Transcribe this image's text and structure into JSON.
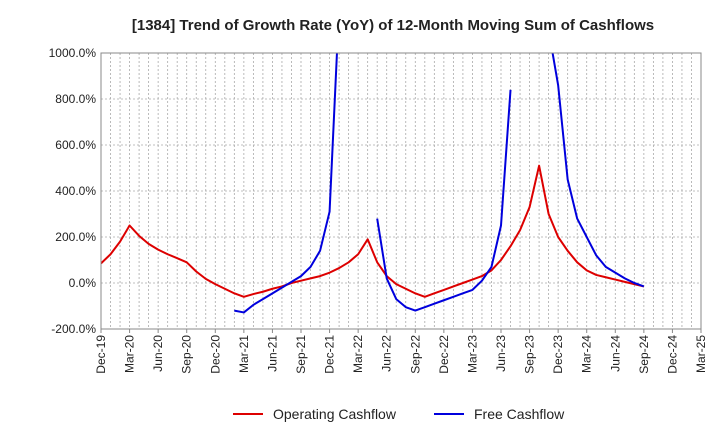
{
  "chart_data": {
    "type": "line",
    "title": "[1384]  Trend of Growth Rate (YoY) of 12-Month Moving Sum of Cashflows",
    "xlabel": "",
    "ylabel": "",
    "ylim": [
      -200,
      1000
    ],
    "yticks": [
      -200,
      0,
      200,
      400,
      600,
      800,
      1000
    ],
    "ytick_labels": [
      "-200.0%",
      "0.0%",
      "200.0%",
      "400.0%",
      "600.0%",
      "800.0%",
      "1000.0%"
    ],
    "x_start": "Dec-19",
    "x_end": "Mar-25",
    "xtick_labels": [
      "Dec-19",
      "Mar-20",
      "Jun-20",
      "Sep-20",
      "Dec-20",
      "Mar-21",
      "Jun-21",
      "Sep-21",
      "Dec-21",
      "Mar-22",
      "Jun-22",
      "Sep-22",
      "Dec-22",
      "Mar-23",
      "Jun-23",
      "Sep-23",
      "Dec-23",
      "Mar-24",
      "Jun-24",
      "Sep-24",
      "Dec-24",
      "Mar-25"
    ],
    "grid": true,
    "legend_position": "bottom",
    "series": [
      {
        "name": "Operating Cashflow",
        "color": "#dd0000",
        "x": [
          "Dec-19",
          "Jan-20",
          "Feb-20",
          "Mar-20",
          "Apr-20",
          "May-20",
          "Jun-20",
          "Jul-20",
          "Aug-20",
          "Sep-20",
          "Oct-20",
          "Nov-20",
          "Dec-20",
          "Jan-21",
          "Feb-21",
          "Mar-21",
          "Apr-21",
          "May-21",
          "Jun-21",
          "Jul-21",
          "Aug-21",
          "Sep-21",
          "Oct-21",
          "Nov-21",
          "Dec-21",
          "Jan-22",
          "Feb-22",
          "Mar-22",
          "Apr-22",
          "May-22",
          "Jun-22",
          "Jul-22",
          "Aug-22",
          "Sep-22",
          "Oct-22",
          "Nov-22",
          "Dec-22",
          "Jan-23",
          "Feb-23",
          "Mar-23",
          "Apr-23",
          "May-23",
          "Jun-23",
          "Jul-23",
          "Aug-23",
          "Sep-23",
          "Oct-23",
          "Nov-23",
          "Dec-23",
          "Jan-24",
          "Feb-24",
          "Mar-24",
          "Apr-24",
          "May-24",
          "Jun-24",
          "Jul-24",
          "Aug-24",
          "Sep-24"
        ],
        "values": [
          85,
          125,
          180,
          250,
          205,
          170,
          145,
          125,
          108,
          90,
          50,
          18,
          -5,
          -25,
          -45,
          -60,
          -48,
          -38,
          -25,
          -15,
          0,
          10,
          20,
          30,
          45,
          65,
          90,
          125,
          190,
          90,
          30,
          -5,
          -25,
          -45,
          -60,
          -45,
          -30,
          -15,
          0,
          15,
          30,
          55,
          100,
          160,
          230,
          330,
          510,
          300,
          200,
          140,
          90,
          55,
          35,
          25,
          15,
          5,
          -5,
          -15
        ]
      },
      {
        "name": "Free Cashflow",
        "color": "#0000dd",
        "x": [
          "Feb-21",
          "Mar-21",
          "Apr-21",
          "May-21",
          "Jun-21",
          "Jul-21",
          "Aug-21",
          "Sep-21",
          "Oct-21",
          "Nov-21",
          "Dec-21",
          "Jan-22",
          "Feb-22",
          "Mar-22",
          "Apr-22",
          "May-22",
          "Jun-22",
          "Jul-22",
          "Aug-22",
          "Sep-22",
          "Oct-22",
          "Nov-22",
          "Dec-22",
          "Jan-23",
          "Feb-23",
          "Mar-23",
          "Apr-23",
          "May-23",
          "Jun-23",
          "Jul-23",
          "Aug-23",
          "Sep-23",
          "Oct-23",
          "Nov-23",
          "Dec-23",
          "Jan-24",
          "Feb-24",
          "Mar-24",
          "Apr-24",
          "May-24",
          "Jun-24",
          "Jul-24",
          "Aug-24",
          "Sep-24"
        ],
        "values": [
          -120,
          -128,
          -95,
          -70,
          -45,
          -20,
          5,
          30,
          70,
          140,
          310,
          1200,
          null,
          null,
          null,
          280,
          20,
          -70,
          -105,
          -120,
          -105,
          -90,
          -75,
          -60,
          -45,
          -30,
          10,
          70,
          250,
          840,
          null,
          null,
          null,
          1100,
          860,
          450,
          280,
          200,
          120,
          70,
          45,
          20,
          0,
          -15
        ]
      }
    ]
  }
}
